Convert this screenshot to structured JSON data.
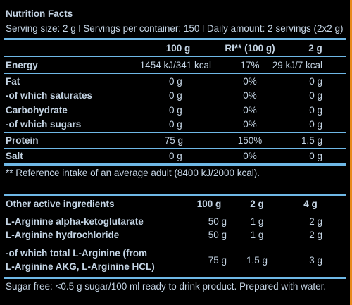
{
  "title": "Nutrition Facts",
  "serving_line": "Serving size: 2 g l Servings per container: 150 l Daily amount: 2 servings (2x2 g)",
  "nutrition": {
    "headers": [
      "100 g",
      "RI** (100 g)",
      "2 g"
    ],
    "rows": [
      {
        "label": "Energy",
        "v100": "1454 kJ/341 kcal",
        "ri": "17%",
        "v2": "29 kJ/7 kcal"
      },
      {
        "label": "Fat",
        "v100": "0 g",
        "ri": "0%",
        "v2": "0 g"
      },
      {
        "label": "-of which saturates",
        "v100": "0 g",
        "ri": "0%",
        "v2": "0 g"
      },
      {
        "label": "Carbohydrate",
        "v100": "0 g",
        "ri": "0%",
        "v2": "0 g"
      },
      {
        "label": "-of which sugars",
        "v100": "0 g",
        "ri": "0%",
        "v2": "0 g"
      },
      {
        "label": "Protein",
        "v100": "75 g",
        "ri": "150%",
        "v2": "1.5 g"
      },
      {
        "label": "Salt",
        "v100": "0 g",
        "ri": "0%",
        "v2": "0 g"
      }
    ],
    "footnote": "** Reference intake of an average adult (8400 kJ/2000 kcal)."
  },
  "active": {
    "header_label": "Other active ingredients",
    "headers": [
      "100 g",
      "2 g",
      "4 g"
    ],
    "rows": [
      {
        "label": "L-Arginine alpha-ketoglutarate",
        "v100": "50 g",
        "v2": "1 g",
        "v4": "2 g"
      },
      {
        "label": "L-Arginine hydrochloride",
        "v100": "50 g",
        "v2": "1 g",
        "v4": "2 g"
      },
      {
        "label_line1": "-of which total L-Arginine (from",
        "label_line2": "L-Arginine AKG, L-Arginine HCL)",
        "v100": "75 g",
        "v2": "1.5 g",
        "v4": "3 g"
      }
    ]
  },
  "bottom_note": "Sugar free: <0.5 g sugar/100 ml ready to drink product. Prepared with water.",
  "colors": {
    "background": "#000000",
    "text": "#c4d4e4",
    "rule": "#6fb8e6",
    "accent_border": "#e8891c"
  }
}
